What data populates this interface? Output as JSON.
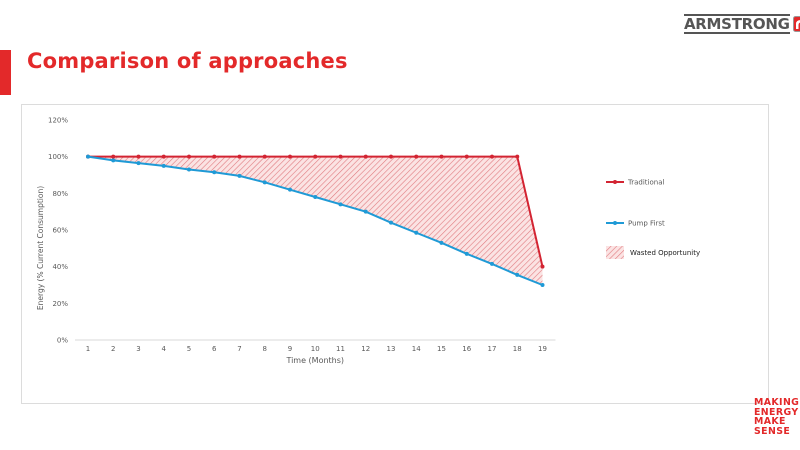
{
  "slide": {
    "title": "Comparison of approaches",
    "accent_color": "#e3292a"
  },
  "brand": {
    "name": "ARMSTRONG",
    "logo_icon": "armstrong-logo-icon",
    "tagline_lines": [
      "MAKING",
      "ENERGY",
      "MAKE",
      "SENSE"
    ]
  },
  "chart_data": {
    "type": "line",
    "title": "",
    "xlabel": "Time (Months)",
    "ylabel": "Energy (%  Current Consumption)",
    "categories": [
      "1",
      "2",
      "3",
      "4",
      "5",
      "6",
      "7",
      "8",
      "9",
      "10",
      "11",
      "12",
      "13",
      "14",
      "15",
      "16",
      "17",
      "18",
      "19"
    ],
    "y_ticks": [
      "0%",
      "20%",
      "40%",
      "60%",
      "80%",
      "100%",
      "120%"
    ],
    "ylim": [
      0,
      1.2
    ],
    "grid": false,
    "legend_position": "right",
    "series": [
      {
        "name": "Traditional",
        "color": "#d32432",
        "marker": "circle",
        "values": [
          1.0,
          1.0,
          1.0,
          1.0,
          1.0,
          1.0,
          1.0,
          1.0,
          1.0,
          1.0,
          1.0,
          1.0,
          1.0,
          1.0,
          1.0,
          1.0,
          1.0,
          1.0,
          0.4
        ]
      },
      {
        "name": "Pump First",
        "color": "#1f9ad6",
        "marker": "circle",
        "values": [
          1.0,
          0.98,
          0.965,
          0.95,
          0.93,
          0.915,
          0.895,
          0.86,
          0.82,
          0.78,
          0.74,
          0.7,
          0.64,
          0.585,
          0.53,
          0.47,
          0.415,
          0.355,
          0.3
        ]
      }
    ],
    "area": {
      "name": "Wasted Opportunity",
      "between": [
        "Traditional",
        "Pump First"
      ],
      "fill": "hatched",
      "color": "#d32432"
    }
  }
}
